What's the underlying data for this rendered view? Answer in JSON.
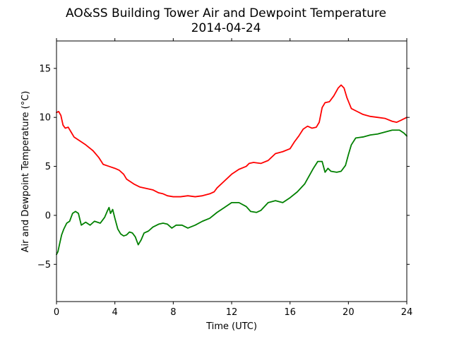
{
  "chart_data": {
    "type": "line",
    "title": "AO&SS Building Tower Air and Dewpoint Temperature",
    "subtitle": "2014-04-24",
    "xlabel": "Time (UTC)",
    "ylabel": "Air and Dewpoint Temperature (°C)",
    "xlim": [
      0,
      24
    ],
    "ylim": [
      -8.8,
      17.8
    ],
    "xticks": [
      0,
      4,
      8,
      12,
      16,
      20,
      24
    ],
    "yticks": [
      -5,
      0,
      5,
      10,
      15
    ],
    "grid": false,
    "legend": "none",
    "series": [
      {
        "color": "#ff0000",
        "points": [
          [
            0.0,
            10.5
          ],
          [
            0.15,
            10.6
          ],
          [
            0.3,
            10.2
          ],
          [
            0.45,
            9.2
          ],
          [
            0.6,
            8.9
          ],
          [
            0.8,
            9.0
          ],
          [
            1.0,
            8.5
          ],
          [
            1.2,
            8.0
          ],
          [
            1.5,
            7.7
          ],
          [
            2.0,
            7.2
          ],
          [
            2.5,
            6.6
          ],
          [
            2.9,
            5.9
          ],
          [
            3.2,
            5.2
          ],
          [
            3.6,
            5.0
          ],
          [
            4.0,
            4.8
          ],
          [
            4.3,
            4.6
          ],
          [
            4.6,
            4.2
          ],
          [
            4.8,
            3.7
          ],
          [
            5.0,
            3.5
          ],
          [
            5.3,
            3.2
          ],
          [
            5.7,
            2.9
          ],
          [
            6.0,
            2.8
          ],
          [
            6.3,
            2.7
          ],
          [
            6.6,
            2.6
          ],
          [
            7.0,
            2.3
          ],
          [
            7.3,
            2.2
          ],
          [
            7.6,
            2.0
          ],
          [
            8.0,
            1.9
          ],
          [
            8.5,
            1.9
          ],
          [
            9.0,
            2.0
          ],
          [
            9.5,
            1.9
          ],
          [
            10.0,
            2.0
          ],
          [
            10.5,
            2.2
          ],
          [
            10.8,
            2.4
          ],
          [
            11.0,
            2.8
          ],
          [
            11.5,
            3.5
          ],
          [
            12.0,
            4.2
          ],
          [
            12.5,
            4.7
          ],
          [
            13.0,
            5.0
          ],
          [
            13.2,
            5.3
          ],
          [
            13.5,
            5.4
          ],
          [
            14.0,
            5.3
          ],
          [
            14.5,
            5.6
          ],
          [
            15.0,
            6.3
          ],
          [
            15.5,
            6.5
          ],
          [
            16.0,
            6.8
          ],
          [
            16.3,
            7.5
          ],
          [
            16.6,
            8.1
          ],
          [
            16.9,
            8.8
          ],
          [
            17.2,
            9.1
          ],
          [
            17.5,
            8.9
          ],
          [
            17.8,
            9.0
          ],
          [
            18.0,
            9.5
          ],
          [
            18.2,
            11.0
          ],
          [
            18.4,
            11.5
          ],
          [
            18.7,
            11.6
          ],
          [
            19.0,
            12.2
          ],
          [
            19.3,
            13.0
          ],
          [
            19.5,
            13.3
          ],
          [
            19.7,
            13.0
          ],
          [
            19.9,
            12.0
          ],
          [
            20.2,
            10.9
          ],
          [
            20.6,
            10.6
          ],
          [
            21.0,
            10.3
          ],
          [
            21.5,
            10.1
          ],
          [
            22.0,
            10.0
          ],
          [
            22.5,
            9.9
          ],
          [
            23.0,
            9.6
          ],
          [
            23.3,
            9.5
          ],
          [
            23.6,
            9.7
          ],
          [
            24.0,
            10.0
          ]
        ]
      },
      {
        "color": "#008000",
        "points": [
          [
            0.0,
            -4.0
          ],
          [
            0.1,
            -3.7
          ],
          [
            0.2,
            -3.0
          ],
          [
            0.35,
            -2.0
          ],
          [
            0.5,
            -1.4
          ],
          [
            0.7,
            -0.8
          ],
          [
            0.9,
            -0.6
          ],
          [
            1.1,
            0.2
          ],
          [
            1.3,
            0.4
          ],
          [
            1.5,
            0.2
          ],
          [
            1.7,
            -1.0
          ],
          [
            2.0,
            -0.7
          ],
          [
            2.3,
            -1.0
          ],
          [
            2.6,
            -0.6
          ],
          [
            3.0,
            -0.8
          ],
          [
            3.3,
            -0.2
          ],
          [
            3.5,
            0.5
          ],
          [
            3.6,
            0.8
          ],
          [
            3.7,
            0.2
          ],
          [
            3.85,
            0.6
          ],
          [
            4.0,
            -0.3
          ],
          [
            4.2,
            -1.4
          ],
          [
            4.4,
            -1.9
          ],
          [
            4.6,
            -2.1
          ],
          [
            4.8,
            -2.0
          ],
          [
            5.0,
            -1.7
          ],
          [
            5.2,
            -1.8
          ],
          [
            5.4,
            -2.2
          ],
          [
            5.6,
            -3.0
          ],
          [
            5.8,
            -2.5
          ],
          [
            6.0,
            -1.8
          ],
          [
            6.3,
            -1.6
          ],
          [
            6.6,
            -1.2
          ],
          [
            7.0,
            -0.9
          ],
          [
            7.3,
            -0.8
          ],
          [
            7.6,
            -0.9
          ],
          [
            7.9,
            -1.3
          ],
          [
            8.2,
            -1.0
          ],
          [
            8.6,
            -1.0
          ],
          [
            9.0,
            -1.3
          ],
          [
            9.5,
            -1.0
          ],
          [
            10.0,
            -0.6
          ],
          [
            10.5,
            -0.3
          ],
          [
            11.0,
            0.3
          ],
          [
            11.5,
            0.8
          ],
          [
            12.0,
            1.3
          ],
          [
            12.5,
            1.3
          ],
          [
            13.0,
            0.9
          ],
          [
            13.3,
            0.4
          ],
          [
            13.7,
            0.3
          ],
          [
            14.0,
            0.5
          ],
          [
            14.5,
            1.3
          ],
          [
            15.0,
            1.5
          ],
          [
            15.5,
            1.3
          ],
          [
            16.0,
            1.8
          ],
          [
            16.5,
            2.4
          ],
          [
            17.0,
            3.2
          ],
          [
            17.3,
            4.0
          ],
          [
            17.6,
            4.8
          ],
          [
            17.9,
            5.5
          ],
          [
            18.2,
            5.5
          ],
          [
            18.4,
            4.4
          ],
          [
            18.6,
            4.8
          ],
          [
            18.8,
            4.5
          ],
          [
            19.2,
            4.4
          ],
          [
            19.5,
            4.5
          ],
          [
            19.8,
            5.1
          ],
          [
            20.0,
            6.2
          ],
          [
            20.2,
            7.2
          ],
          [
            20.5,
            7.9
          ],
          [
            21.0,
            8.0
          ],
          [
            21.5,
            8.2
          ],
          [
            22.0,
            8.3
          ],
          [
            22.5,
            8.5
          ],
          [
            23.0,
            8.7
          ],
          [
            23.5,
            8.7
          ],
          [
            23.8,
            8.4
          ],
          [
            24.0,
            8.1
          ]
        ]
      }
    ]
  }
}
